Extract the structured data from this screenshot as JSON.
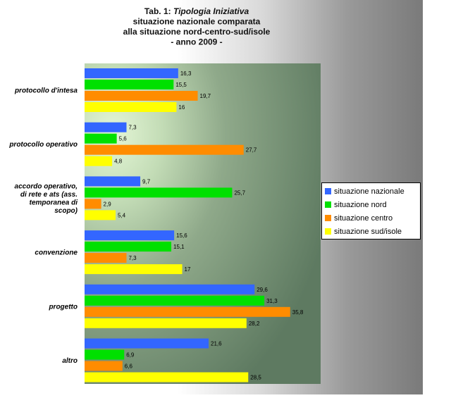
{
  "chart_data": {
    "type": "bar",
    "orientation": "horizontal",
    "title_lines": [
      {
        "prefix": "Tab. 1: ",
        "italic": "Tipologia Iniziativa"
      },
      {
        "text": "situazione nazionale comparata"
      },
      {
        "text": "alla situazione nord-centro-sud/isole"
      },
      {
        "text": "- anno 2009 -"
      }
    ],
    "categories": [
      [
        "protocollo d'intesa"
      ],
      [
        "protocollo operativo"
      ],
      [
        "accordo operativo,",
        "di rete e ats (ass.",
        "temporanea di",
        "scopo)"
      ],
      [
        "convenzione"
      ],
      [
        "progetto"
      ],
      [
        "altro"
      ]
    ],
    "series": [
      {
        "name": "situazione nazionale",
        "color": "#3366ff",
        "values": [
          16.3,
          7.3,
          9.7,
          15.6,
          29.6,
          21.6
        ],
        "labels": [
          "16,3",
          "7,3",
          "9,7",
          "15,6",
          "29,6",
          "21,6"
        ]
      },
      {
        "name": "situazione nord",
        "color": "#00e000",
        "values": [
          15.5,
          5.6,
          25.7,
          15.1,
          31.3,
          6.9
        ],
        "labels": [
          "15,5",
          "5,6",
          "25,7",
          "15,1",
          "31,3",
          "6,9"
        ]
      },
      {
        "name": "situazione centro",
        "color": "#ff8c00",
        "values": [
          19.7,
          27.7,
          2.9,
          7.3,
          35.8,
          6.6
        ],
        "labels": [
          "19,7",
          "27,7",
          "2,9",
          "7,3",
          "35,8",
          "6,6"
        ]
      },
      {
        "name": "situazione sud/isole",
        "color": "#ffff00",
        "values": [
          16,
          4.8,
          5.4,
          17,
          28.2,
          28.5
        ],
        "labels": [
          "16",
          "4,8",
          "5,4",
          "17",
          "28,2",
          "28,5"
        ]
      }
    ],
    "xlim": [
      0,
      41
    ],
    "grid": false,
    "legend_position": "right"
  }
}
